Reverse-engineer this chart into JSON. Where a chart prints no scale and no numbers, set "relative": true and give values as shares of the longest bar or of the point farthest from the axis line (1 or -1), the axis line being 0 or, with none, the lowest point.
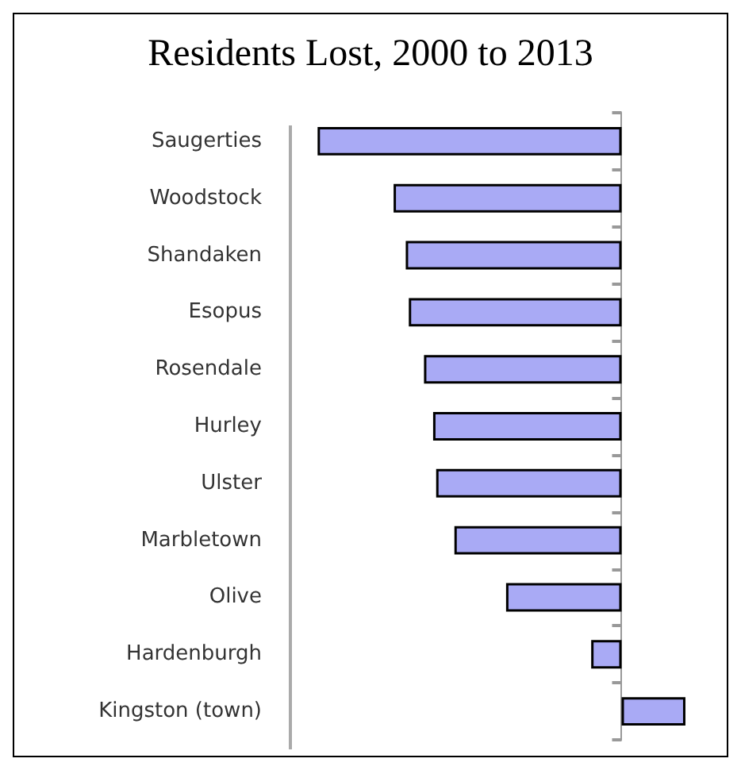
{
  "chart_data": {
    "type": "bar",
    "orientation": "horizontal",
    "relative": true,
    "title": "Residents Lost, 2000 to 2013",
    "categories": [
      "Saugerties",
      "Woodstock",
      "Shandaken",
      "Esopus",
      "Rosendale",
      "Hurley",
      "Ulster",
      "Marbletown",
      "Olive",
      "Hardenburgh",
      "Kingston (town)"
    ],
    "values": [
      -1,
      -0.75,
      -0.71,
      -0.7,
      -0.65,
      -0.62,
      -0.61,
      -0.55,
      -0.38,
      -0.1,
      0.21
    ],
    "color": "#a9aaf5"
  }
}
